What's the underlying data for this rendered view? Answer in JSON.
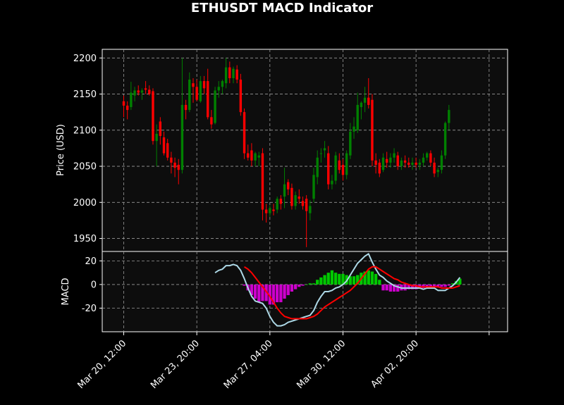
{
  "chart_data": [
    {
      "type": "candlestick",
      "title": "ETHUSDT MACD Indicator",
      "ylabel": "Price (USD)",
      "ylim": [
        1932,
        2212
      ],
      "yticks": [
        1950,
        2000,
        2050,
        2100,
        2150,
        2200
      ],
      "grid": true,
      "interval_hours": 4,
      "x_ticks": [
        {
          "label": "Mar 20, 12:00",
          "index": 0
        },
        {
          "label": "Mar 23, 20:00",
          "index": 20
        },
        {
          "label": "Mar 27, 04:00",
          "index": 40
        },
        {
          "label": "Mar 30, 12:00",
          "index": 60
        },
        {
          "label": "Apr 02, 20:00",
          "index": 80
        },
        {
          "label": "",
          "index": 100
        }
      ],
      "colors": {
        "up": "#008000",
        "down": "#ff0000"
      },
      "ohlc": [
        [
          2140,
          2148,
          2118,
          2134
        ],
        [
          2134,
          2140,
          2115,
          2128
        ],
        [
          2132,
          2167,
          2128,
          2152
        ],
        [
          2148,
          2160,
          2140,
          2155
        ],
        [
          2155,
          2162,
          2148,
          2152
        ],
        [
          2152,
          2158,
          2142,
          2155
        ],
        [
          2158,
          2168,
          2150,
          2156
        ],
        [
          2156,
          2162,
          2148,
          2150
        ],
        [
          2154,
          2158,
          2080,
          2085
        ],
        [
          2085,
          2108,
          2050,
          2095
        ],
        [
          2112,
          2118,
          2080,
          2092
        ],
        [
          2090,
          2098,
          2065,
          2068
        ],
        [
          2082,
          2088,
          2058,
          2062
        ],
        [
          2062,
          2070,
          2040,
          2055
        ],
        [
          2055,
          2062,
          2035,
          2048
        ],
        [
          2052,
          2060,
          2025,
          2045
        ],
        [
          2045,
          2200,
          2040,
          2135
        ],
        [
          2135,
          2142,
          2115,
          2128
        ],
        [
          2128,
          2180,
          2125,
          2170
        ],
        [
          2165,
          2172,
          2138,
          2160
        ],
        [
          2160,
          2170,
          2140,
          2142
        ],
        [
          2140,
          2175,
          2138,
          2168
        ],
        [
          2168,
          2175,
          2150,
          2158
        ],
        [
          2168,
          2185,
          2115,
          2118
        ],
        [
          2118,
          2128,
          2102,
          2108
        ],
        [
          2110,
          2160,
          2108,
          2155
        ],
        [
          2155,
          2168,
          2145,
          2160
        ],
        [
          2160,
          2170,
          2150,
          2168
        ],
        [
          2165,
          2200,
          2158,
          2187
        ],
        [
          2187,
          2195,
          2165,
          2172
        ],
        [
          2172,
          2188,
          2165,
          2185
        ],
        [
          2184,
          2190,
          2165,
          2170
        ],
        [
          2170,
          2178,
          2120,
          2125
        ],
        [
          2125,
          2130,
          2060,
          2068
        ],
        [
          2068,
          2080,
          2058,
          2062
        ],
        [
          2072,
          2082,
          2050,
          2058
        ],
        [
          2058,
          2070,
          2050,
          2068
        ],
        [
          2062,
          2070,
          2050,
          2065
        ],
        [
          2068,
          2075,
          1975,
          1990
        ],
        [
          1990,
          1998,
          1972,
          1985
        ],
        [
          1985,
          1996,
          1980,
          1992
        ],
        [
          1990,
          1998,
          1982,
          1988
        ],
        [
          1990,
          2008,
          1985,
          2005
        ],
        [
          2005,
          2010,
          1990,
          1998
        ],
        [
          2008,
          2048,
          1992,
          2025
        ],
        [
          2028,
          2032,
          2010,
          2018
        ],
        [
          2020,
          2026,
          1990,
          1995
        ],
        [
          1995,
          2015,
          1990,
          2010
        ],
        [
          2008,
          2018,
          1998,
          2005
        ],
        [
          2002,
          2008,
          1990,
          1995
        ],
        [
          2005,
          2010,
          1938,
          1988
        ],
        [
          1985,
          2003,
          1975,
          1995
        ],
        [
          2005,
          2048,
          2000,
          2038
        ],
        [
          2035,
          2072,
          2025,
          2062
        ],
        [
          2068,
          2075,
          2055,
          2068
        ],
        [
          2072,
          2085,
          2062,
          2075
        ],
        [
          2068,
          2078,
          2018,
          2025
        ],
        [
          2025,
          2038,
          2018,
          2030
        ],
        [
          2030,
          2070,
          2025,
          2065
        ],
        [
          2058,
          2068,
          2040,
          2045
        ],
        [
          2052,
          2060,
          2030,
          2038
        ],
        [
          2038,
          2072,
          2032,
          2068
        ],
        [
          2065,
          2110,
          2060,
          2098
        ],
        [
          2098,
          2118,
          2088,
          2105
        ],
        [
          2100,
          2152,
          2096,
          2135
        ],
        [
          2132,
          2140,
          2115,
          2138
        ],
        [
          2138,
          2160,
          2125,
          2145
        ],
        [
          2145,
          2172,
          2130,
          2135
        ],
        [
          2142,
          2150,
          2050,
          2058
        ],
        [
          2058,
          2068,
          2040,
          2052
        ],
        [
          2055,
          2060,
          2035,
          2040
        ],
        [
          2045,
          2068,
          2042,
          2062
        ],
        [
          2060,
          2070,
          2048,
          2055
        ],
        [
          2055,
          2068,
          2048,
          2062
        ],
        [
          2062,
          2075,
          2055,
          2068
        ],
        [
          2065,
          2070,
          2045,
          2050
        ],
        [
          2050,
          2062,
          2045,
          2058
        ],
        [
          2058,
          2065,
          2048,
          2055
        ],
        [
          2055,
          2062,
          2048,
          2052
        ],
        [
          2052,
          2062,
          2045,
          2055
        ],
        [
          2055,
          2062,
          2048,
          2052
        ],
        [
          2052,
          2060,
          2045,
          2055
        ],
        [
          2055,
          2068,
          2050,
          2062
        ],
        [
          2062,
          2070,
          2058,
          2068
        ],
        [
          2068,
          2072,
          2050,
          2055
        ],
        [
          2055,
          2062,
          2035,
          2040
        ],
        [
          2042,
          2048,
          2035,
          2045
        ],
        [
          2045,
          2072,
          2040,
          2065
        ],
        [
          2065,
          2112,
          2060,
          2110
        ],
        [
          2110,
          2135,
          2100,
          2128
        ]
      ]
    },
    {
      "type": "line+bar",
      "ylabel": "MACD",
      "ylim": [
        -40,
        28
      ],
      "yticks": [
        -20,
        0,
        20
      ],
      "grid": true,
      "start_index": 25,
      "series": [
        {
          "color": "#add8e6",
          "values": [
            10,
            12,
            13,
            16,
            16,
            17,
            16,
            12,
            5,
            -3,
            -10,
            -14,
            -15,
            -16,
            -20,
            -27,
            -32,
            -35,
            -35,
            -34,
            -32,
            -31,
            -30,
            -29,
            -28,
            -27,
            -26,
            -22,
            -15,
            -10,
            -6,
            -6,
            -5,
            -3,
            -2,
            0,
            3,
            8,
            13,
            18,
            21,
            24,
            26,
            19,
            13,
            8,
            6,
            3,
            1,
            -1,
            -2,
            -3,
            -3,
            -3,
            -3,
            -3,
            -3,
            -4,
            -3,
            -3,
            -3,
            -5,
            -5,
            -5,
            -3,
            -1,
            2,
            6
          ]
        },
        {
          "color": "#ff0000",
          "values": [
            null,
            null,
            null,
            null,
            null,
            null,
            null,
            null,
            15,
            13,
            10,
            6,
            2,
            -2,
            -6,
            -10,
            -15,
            -20,
            -24,
            -27,
            -28,
            -29,
            -29,
            -29,
            -29,
            -29,
            -28,
            -27,
            -25,
            -22,
            -19,
            -17,
            -15,
            -13,
            -11,
            -9,
            -7,
            -5,
            -2,
            1,
            5,
            9,
            13,
            15,
            15,
            13,
            11,
            9,
            7,
            5,
            4,
            2,
            1,
            0,
            -1,
            -1,
            -2,
            -2,
            -2,
            -2,
            -2,
            -2,
            -3,
            -3,
            -3,
            -3,
            -2,
            -1
          ]
        }
      ],
      "histogram": [
        null,
        null,
        null,
        null,
        null,
        null,
        null,
        null,
        -1,
        -5,
        -9,
        -12,
        -15,
        -14,
        -14,
        -17,
        -17,
        -15,
        -15,
        -12,
        -9,
        -6,
        -4,
        -2,
        -1,
        0,
        1,
        1,
        4,
        6,
        8,
        10,
        12,
        10,
        9,
        9,
        8,
        7,
        7,
        8,
        10,
        11,
        12,
        11,
        9,
        4,
        -5,
        -5,
        -6,
        -6,
        -6,
        -5,
        -5,
        -4,
        -4,
        -4,
        -3,
        -3,
        -2,
        -2,
        -2,
        -2,
        -2,
        -2,
        -1,
        1,
        3,
        5
      ],
      "hist_colors": {
        "positive": "#00c800",
        "negative": "#cc00cc"
      }
    }
  ]
}
